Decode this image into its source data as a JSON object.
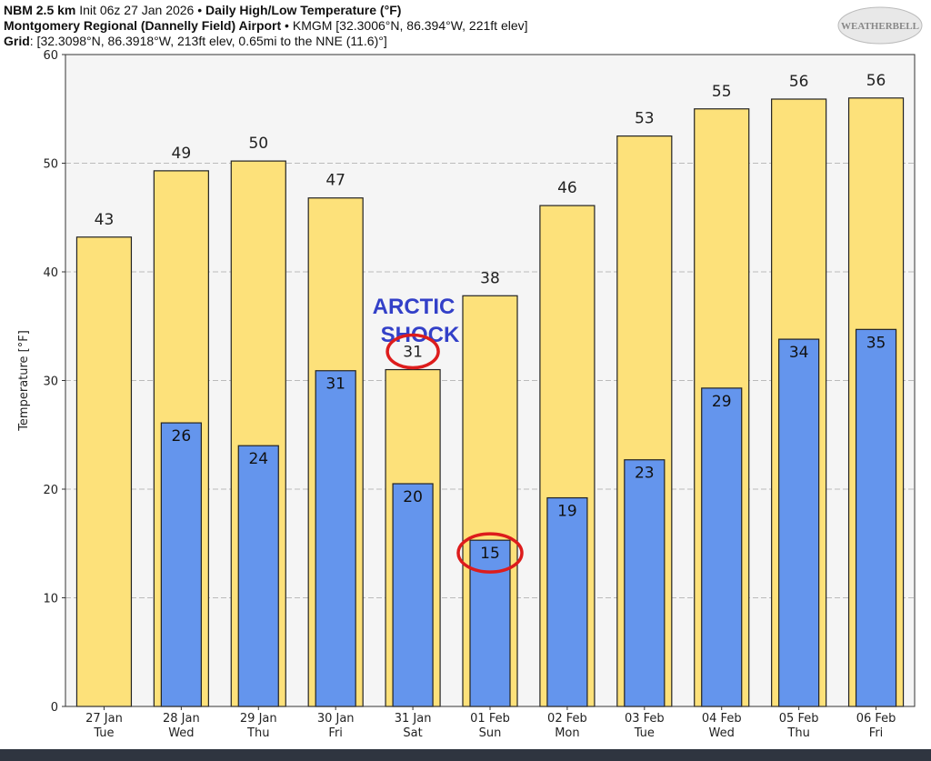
{
  "header": {
    "line1_bold": "NBM 2.5 km",
    "line1_init": "Init 06z 27 Jan 2026",
    "line1_sep": " • ",
    "line1_title": "Daily High/Low Temperature (°F)",
    "line2_bold": "Montgomery Regional (Dannelly Field) Airport",
    "line2_rest": " • KMGM [32.3006°N, 86.394°W, 221ft elev]",
    "line3_bold": "Grid",
    "line3_rest": ": [32.3098°N, 86.3918°W, 213ft elev, 0.65mi to the NNE (11.6)°]"
  },
  "logo_text": "WeatherBELL",
  "annotation": {
    "line1": "ARCTIC",
    "line2": "SHOCK",
    "color": "#3340c8",
    "circle_color": "#dd1c1c",
    "circled": [
      {
        "day": 4,
        "series": "high"
      },
      {
        "day": 5,
        "series": "low"
      }
    ]
  },
  "chart_data": {
    "type": "bar",
    "title": "Daily High/Low Temperature (°F)",
    "ylabel": "Temperature [°F]",
    "xlabel": "",
    "ylim": [
      0,
      60
    ],
    "yticks": [
      0,
      10,
      20,
      30,
      40,
      50,
      60
    ],
    "grid": true,
    "categories": [
      [
        "27 Jan",
        "Tue"
      ],
      [
        "28 Jan",
        "Wed"
      ],
      [
        "29 Jan",
        "Thu"
      ],
      [
        "30 Jan",
        "Fri"
      ],
      [
        "31 Jan",
        "Sat"
      ],
      [
        "01 Feb",
        "Sun"
      ],
      [
        "02 Feb",
        "Mon"
      ],
      [
        "03 Feb",
        "Tue"
      ],
      [
        "04 Feb",
        "Wed"
      ],
      [
        "05 Feb",
        "Thu"
      ],
      [
        "06 Feb",
        "Fri"
      ]
    ],
    "series": [
      {
        "name": "High",
        "color": "#fde17a",
        "values": [
          43.2,
          49.3,
          50.2,
          46.8,
          31.0,
          37.8,
          46.1,
          52.5,
          55.0,
          55.9,
          56.0
        ],
        "labels": [
          "43",
          "49",
          "50",
          "47",
          "31",
          "38",
          "46",
          "53",
          "55",
          "56",
          "56"
        ]
      },
      {
        "name": "Low",
        "color": "#6495ed",
        "values": [
          null,
          26.1,
          24.0,
          30.9,
          20.5,
          15.3,
          19.2,
          22.7,
          29.3,
          33.8,
          34.7
        ],
        "labels": [
          null,
          "26",
          "24",
          "31",
          "20",
          "15",
          "19",
          "23",
          "29",
          "34",
          "35"
        ]
      }
    ]
  }
}
